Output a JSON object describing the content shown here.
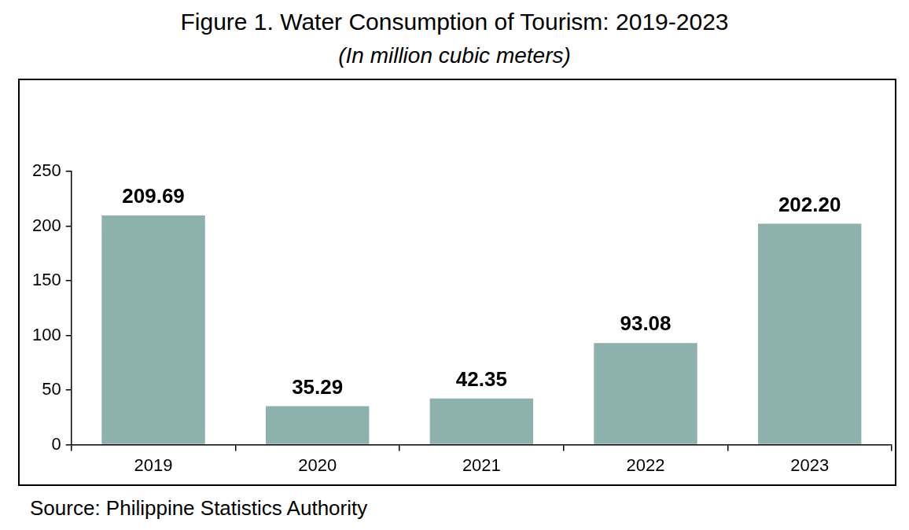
{
  "chart_data": {
    "type": "bar",
    "title": "Figure 1. Water Consumption of Tourism: 2019-2023",
    "subtitle": "(In million cubic meters)",
    "source": "Source: Philippine Statistics Authority",
    "categories": [
      "2019",
      "2020",
      "2021",
      "2022",
      "2023"
    ],
    "values": [
      209.69,
      35.29,
      42.35,
      93.08,
      202.2
    ],
    "value_labels": [
      "209.69",
      "35.29",
      "42.35",
      "93.08",
      "202.20"
    ],
    "color": "#8db1ac",
    "ylim": [
      0,
      250
    ],
    "yticks": [
      0,
      50,
      100,
      150,
      200,
      250
    ],
    "grid": false,
    "data_labels": true
  }
}
